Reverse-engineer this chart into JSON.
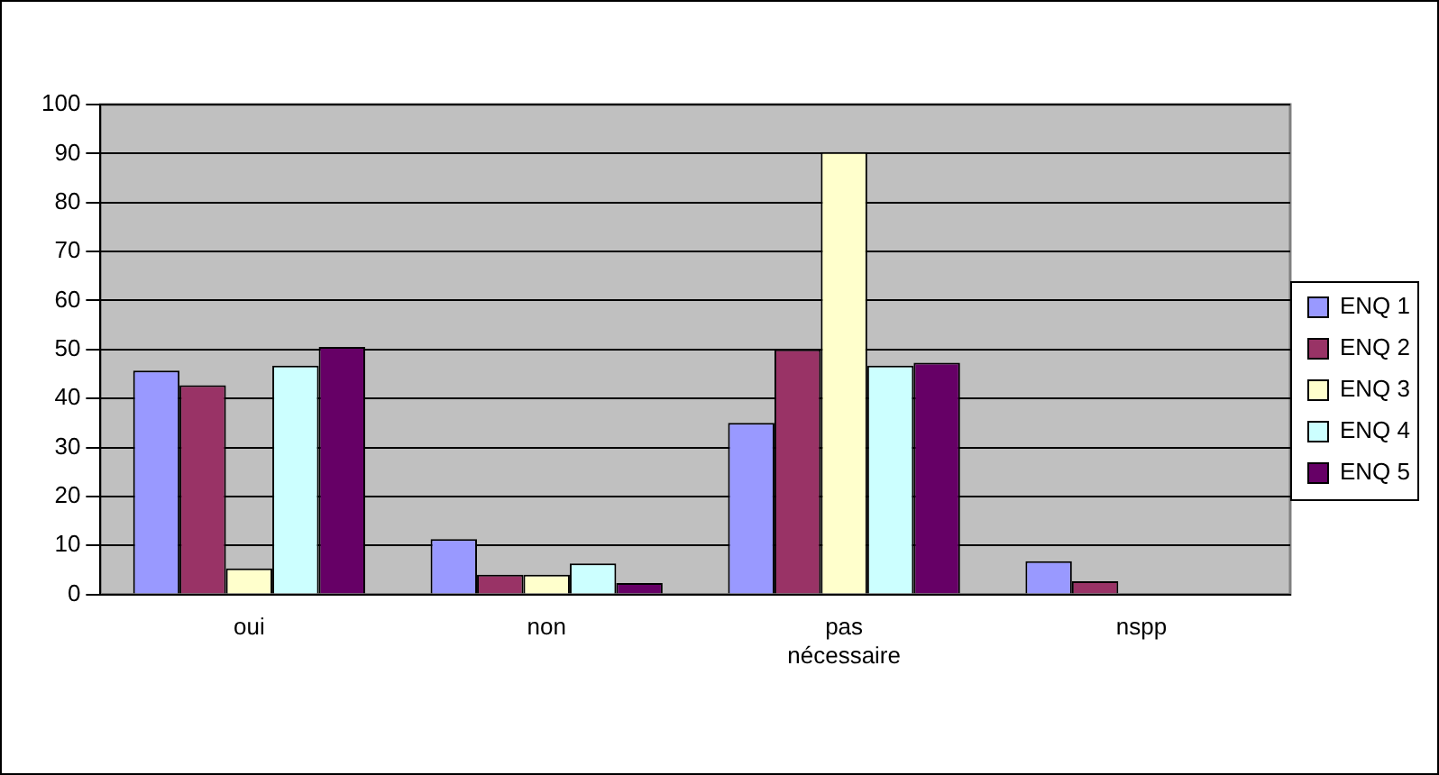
{
  "chart_data": {
    "type": "bar",
    "categories": [
      "oui",
      "non",
      "pas nécessaire",
      "nspp"
    ],
    "series": [
      {
        "name": "ENQ 1",
        "color": "#9999ff",
        "values": [
          45.7,
          11.3,
          35,
          6.8
        ]
      },
      {
        "name": "ENQ 2",
        "color": "#993366",
        "values": [
          42.7,
          4,
          50,
          2.7
        ]
      },
      {
        "name": "ENQ 3",
        "color": "#ffffcc",
        "values": [
          5.3,
          4,
          90.3,
          0
        ]
      },
      {
        "name": "ENQ 4",
        "color": "#ccffff",
        "values": [
          46.7,
          6.3,
          46.7,
          0
        ]
      },
      {
        "name": "ENQ 5",
        "color": "#660066",
        "values": [
          50.5,
          2.3,
          47.3,
          0
        ]
      }
    ],
    "ylim": [
      0,
      100
    ],
    "yticks": [
      0,
      10,
      20,
      30,
      40,
      50,
      60,
      70,
      80,
      90,
      100
    ],
    "grid": "y",
    "legend": "right"
  }
}
